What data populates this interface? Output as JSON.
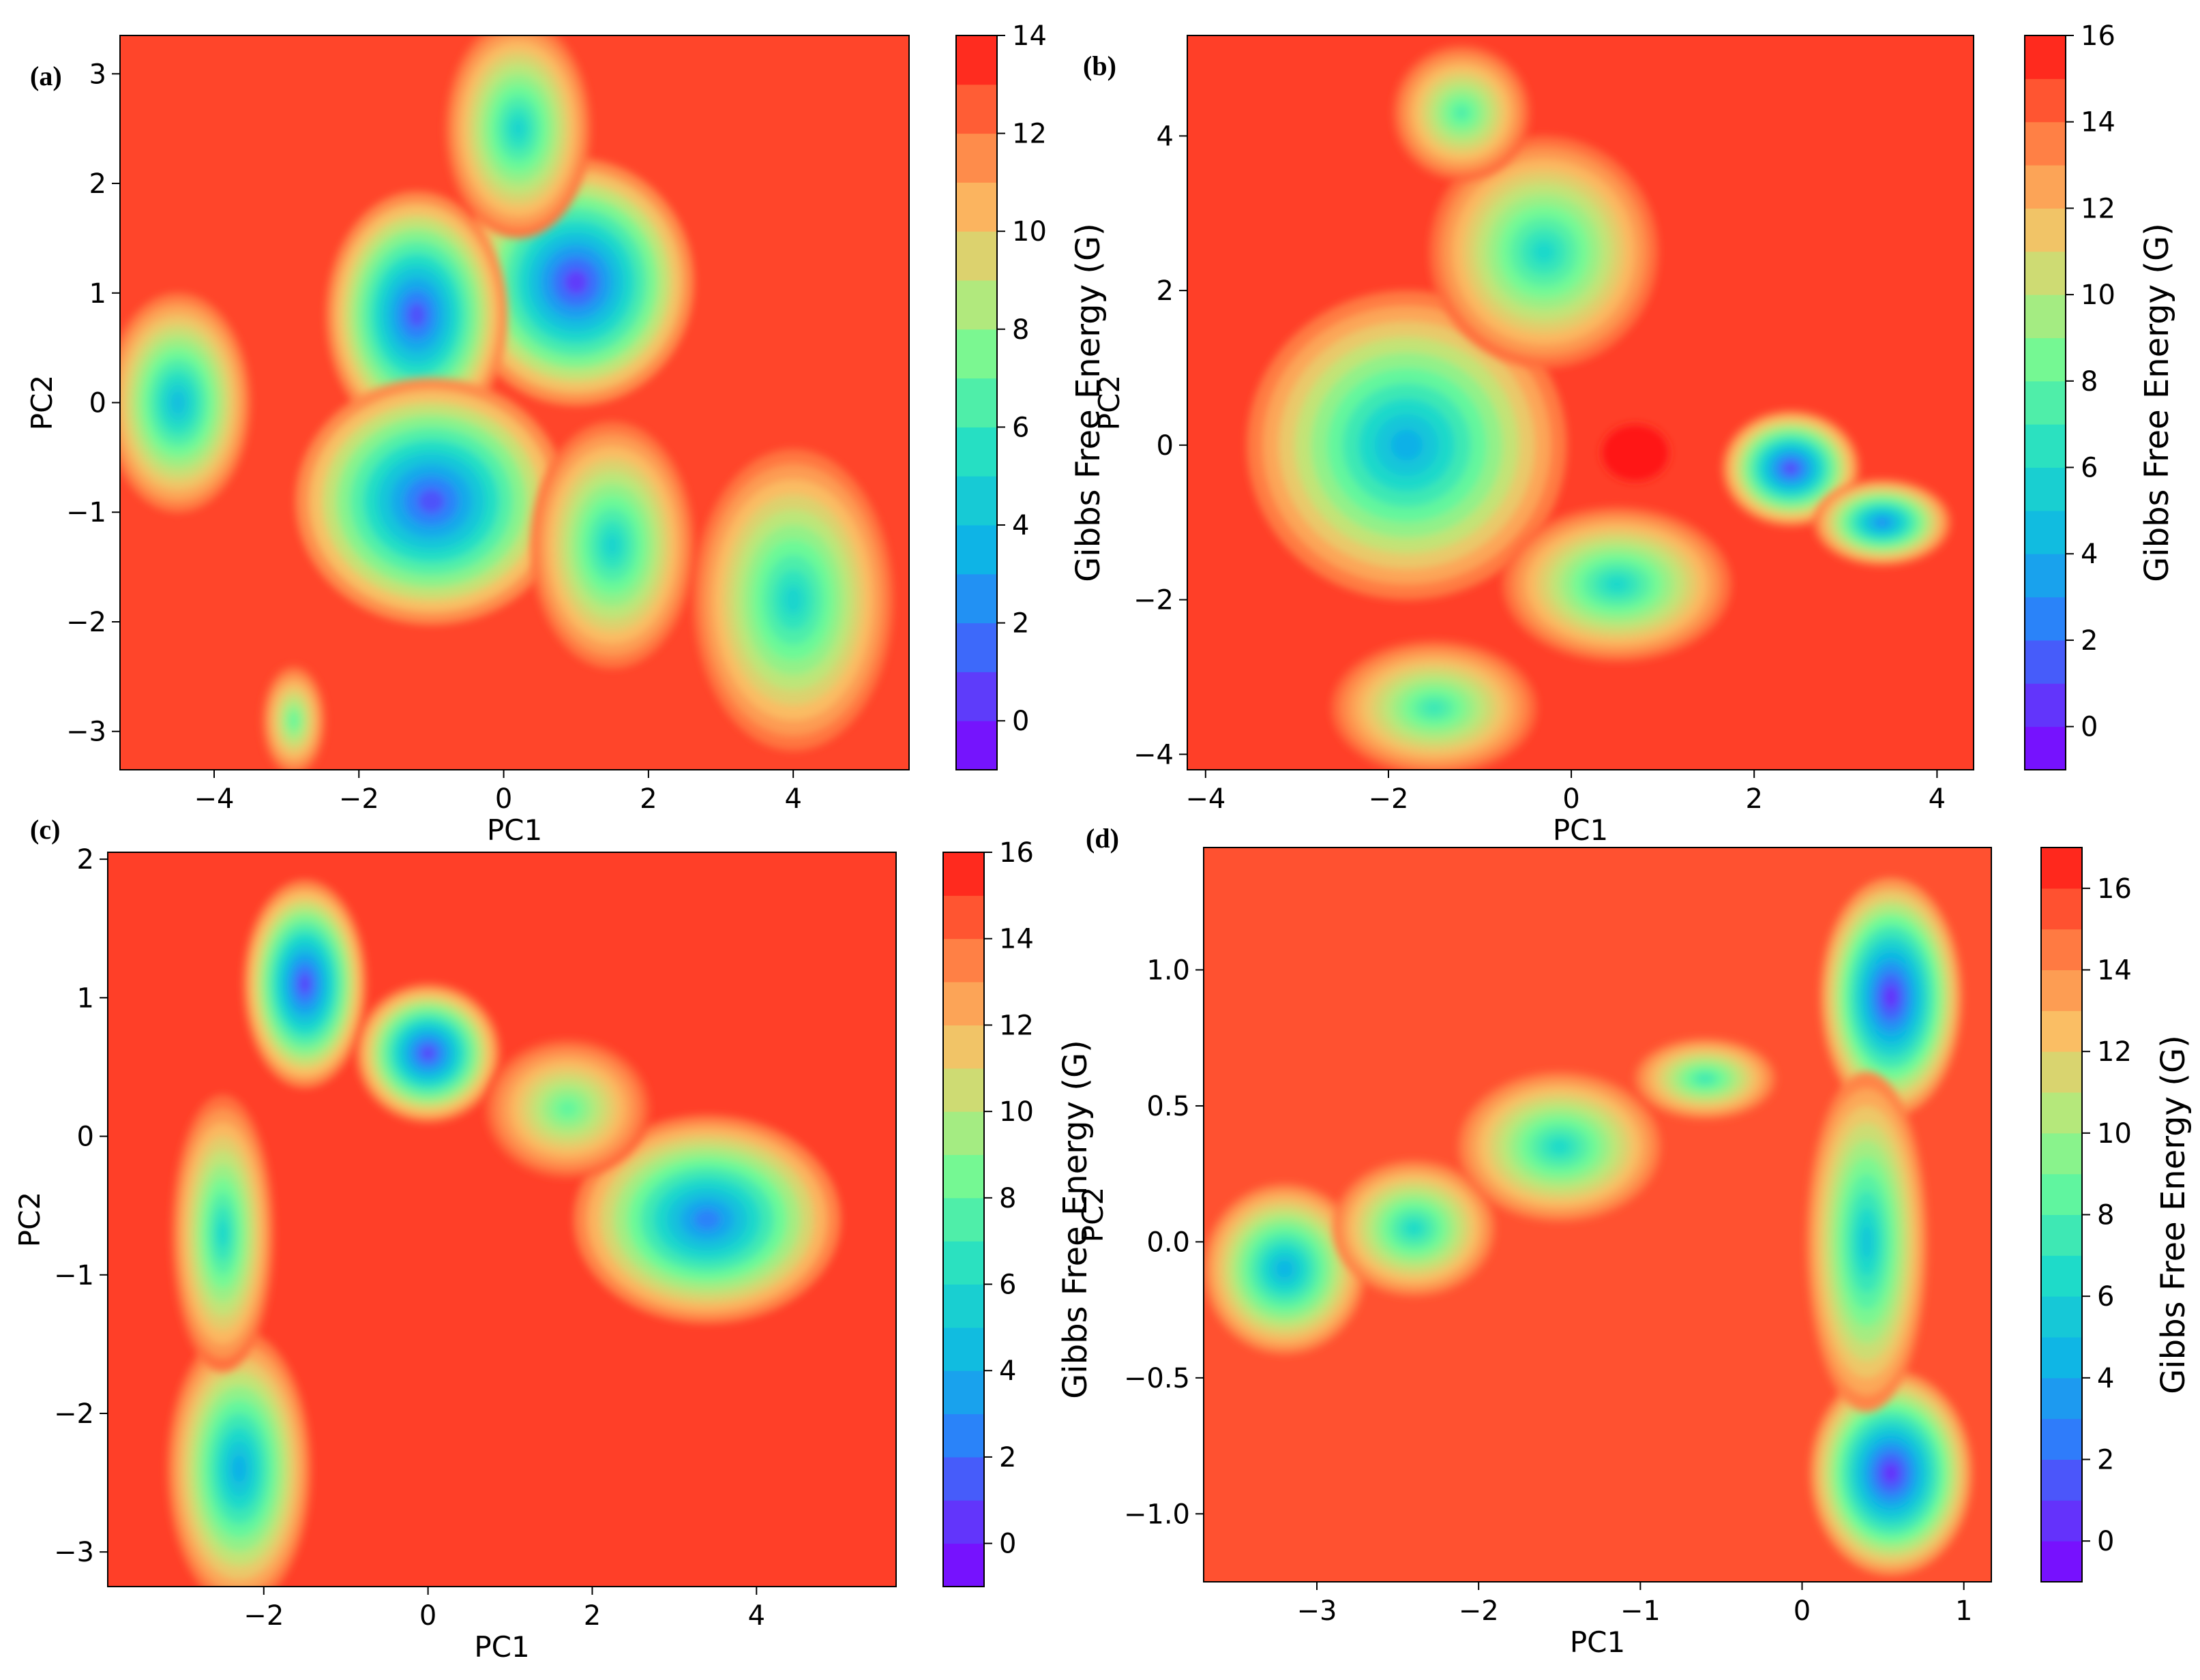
{
  "chart_data": [
    {
      "type": "heatmap",
      "panel_label": "(a)",
      "xlabel": "PC1",
      "ylabel": "PC2",
      "xlim": [
        -5.3,
        5.6
      ],
      "ylim": [
        -3.35,
        3.35
      ],
      "xticks": [
        -4,
        -2,
        0,
        2,
        4
      ],
      "yticks": [
        -3,
        -2,
        -1,
        0,
        1,
        2,
        3
      ],
      "xtick_labels": [
        "−4",
        "−2",
        "0",
        "2",
        "4"
      ],
      "ytick_labels": [
        "−3",
        "−2",
        "−1",
        "0",
        "1",
        "2",
        "3"
      ],
      "colorbar": {
        "label": "Gibbs Free Energy (G)",
        "min": -1,
        "max": 14,
        "ticks": [
          0,
          2,
          4,
          6,
          8,
          10,
          12,
          14
        ],
        "tick_labels": [
          "0",
          "2",
          "4",
          "6",
          "8",
          "10",
          "12",
          "14"
        ]
      },
      "background_value": 13,
      "basins": [
        {
          "x": 1.0,
          "y": 1.1,
          "sx": 1.3,
          "sy": 0.9,
          "depth": 12.5
        },
        {
          "x": -1.2,
          "y": 0.8,
          "sx": 1.0,
          "sy": 0.9,
          "depth": 12.0
        },
        {
          "x": -1.0,
          "y": -0.9,
          "sx": 1.5,
          "sy": 0.9,
          "depth": 12.0
        },
        {
          "x": 0.2,
          "y": 2.5,
          "sx": 0.8,
          "sy": 0.8,
          "depth": 8.0
        },
        {
          "x": -4.5,
          "y": 0.0,
          "sx": 0.8,
          "sy": 0.8,
          "depth": 9.0
        },
        {
          "x": 1.5,
          "y": -1.3,
          "sx": 0.9,
          "sy": 0.9,
          "depth": 8.0
        },
        {
          "x": 4.0,
          "y": -1.8,
          "sx": 1.1,
          "sy": 1.1,
          "depth": 8.0
        },
        {
          "x": -2.9,
          "y": -2.9,
          "sx": 0.35,
          "sy": 0.4,
          "depth": 6.0
        }
      ]
    },
    {
      "type": "heatmap",
      "panel_label": "(b)",
      "xlabel": "PC1",
      "ylabel": "PC2",
      "xlim": [
        -4.2,
        4.4
      ],
      "ylim": [
        -4.2,
        5.3
      ],
      "xticks": [
        -4,
        -2,
        0,
        2,
        4
      ],
      "yticks": [
        -4,
        -2,
        0,
        2,
        4
      ],
      "xtick_labels": [
        "−4",
        "−2",
        "0",
        "2",
        "4"
      ],
      "ytick_labels": [
        "−4",
        "−2",
        "0",
        "2",
        "4"
      ],
      "colorbar": {
        "label": "Gibbs Free Energy (G)",
        "min": -1,
        "max": 16,
        "ticks": [
          0,
          2,
          4,
          6,
          8,
          10,
          12,
          14,
          16
        ],
        "tick_labels": [
          "0",
          "2",
          "4",
          "6",
          "8",
          "10",
          "12",
          "14",
          "16"
        ]
      },
      "background_value": 15,
      "basins": [
        {
          "x": -1.8,
          "y": 0.0,
          "sx": 1.4,
          "sy": 1.6,
          "depth": 11.0
        },
        {
          "x": -0.3,
          "y": 2.5,
          "sx": 1.0,
          "sy": 1.2,
          "depth": 9.0
        },
        {
          "x": 0.5,
          "y": -1.8,
          "sx": 1.0,
          "sy": 0.8,
          "depth": 9.0
        },
        {
          "x": 2.4,
          "y": -0.3,
          "sx": 0.6,
          "sy": 0.6,
          "depth": 14.0
        },
        {
          "x": 3.4,
          "y": -1.0,
          "sx": 0.6,
          "sy": 0.45,
          "depth": 12.0
        },
        {
          "x": -1.2,
          "y": 4.3,
          "sx": 0.6,
          "sy": 0.7,
          "depth": 7.5
        },
        {
          "x": -1.5,
          "y": -3.4,
          "sx": 0.9,
          "sy": 0.7,
          "depth": 8.0
        },
        {
          "x": 0.7,
          "y": -0.1,
          "sx": 0.3,
          "sy": 0.3,
          "depth": -5.0
        }
      ]
    },
    {
      "type": "heatmap",
      "panel_label": "(c)",
      "xlabel": "PC1",
      "ylabel": "PC2",
      "xlim": [
        -3.9,
        5.7
      ],
      "ylim": [
        -3.25,
        2.05
      ],
      "xticks": [
        -2,
        0,
        2,
        4
      ],
      "yticks": [
        -3,
        -2,
        -1,
        0,
        1,
        2
      ],
      "xtick_labels": [
        "−2",
        "0",
        "2",
        "4"
      ],
      "ytick_labels": [
        "−3",
        "−2",
        "−1",
        "0",
        "1",
        "2"
      ],
      "colorbar": {
        "label": "Gibbs Free Energy (G)",
        "min": -1,
        "max": 16,
        "ticks": [
          0,
          2,
          4,
          6,
          8,
          10,
          12,
          14,
          16
        ],
        "tick_labels": [
          "0",
          "2",
          "4",
          "6",
          "8",
          "10",
          "12",
          "14",
          "16"
        ]
      },
      "background_value": 15,
      "basins": [
        {
          "x": -1.5,
          "y": 1.1,
          "sx": 0.6,
          "sy": 0.6,
          "depth": 14.0
        },
        {
          "x": 0.0,
          "y": 0.6,
          "sx": 0.7,
          "sy": 0.4,
          "depth": 14.0
        },
        {
          "x": 3.4,
          "y": -0.6,
          "sx": 1.3,
          "sy": 0.6,
          "depth": 12.5
        },
        {
          "x": -2.3,
          "y": -2.4,
          "sx": 0.7,
          "sy": 0.8,
          "depth": 11.0
        },
        {
          "x": -2.5,
          "y": -0.7,
          "sx": 0.5,
          "sy": 0.8,
          "depth": 9.0
        },
        {
          "x": 1.7,
          "y": 0.2,
          "sx": 0.8,
          "sy": 0.4,
          "depth": 7.0
        }
      ]
    },
    {
      "type": "heatmap",
      "panel_label": "(d)",
      "xlabel": "PC1",
      "ylabel": "PC2",
      "xlim": [
        -3.7,
        1.17
      ],
      "ylim": [
        -1.25,
        1.45
      ],
      "xticks": [
        -3,
        -2,
        -1,
        0,
        1
      ],
      "yticks": [
        -1.0,
        -0.5,
        0.0,
        0.5,
        1.0
      ],
      "xtick_labels": [
        "−3",
        "−2",
        "−1",
        "0",
        "1"
      ],
      "ytick_labels": [
        "−1.0",
        "−0.5",
        "0.0",
        "0.5",
        "1.0"
      ],
      "colorbar": {
        "label": "Gibbs Free Energy (G)",
        "min": -1,
        "max": 17,
        "ticks": [
          0,
          2,
          4,
          6,
          8,
          10,
          12,
          14,
          16
        ],
        "tick_labels": [
          "0",
          "2",
          "4",
          "6",
          "8",
          "10",
          "12",
          "14",
          "16"
        ]
      },
      "background_value": 15.5,
      "basins": [
        {
          "x": 0.55,
          "y": 0.9,
          "sx": 0.35,
          "sy": 0.35,
          "depth": 15.0
        },
        {
          "x": 0.55,
          "y": -0.85,
          "sx": 0.4,
          "sy": 0.3,
          "depth": 15.0
        },
        {
          "x": 0.4,
          "y": 0.0,
          "sx": 0.3,
          "sy": 0.5,
          "depth": 10.0
        },
        {
          "x": -3.2,
          "y": -0.1,
          "sx": 0.4,
          "sy": 0.25,
          "depth": 11.0
        },
        {
          "x": -2.4,
          "y": 0.05,
          "sx": 0.4,
          "sy": 0.2,
          "depth": 9.0
        },
        {
          "x": -1.5,
          "y": 0.35,
          "sx": 0.5,
          "sy": 0.22,
          "depth": 9.0
        },
        {
          "x": -0.6,
          "y": 0.6,
          "sx": 0.35,
          "sy": 0.12,
          "depth": 8.0
        }
      ]
    }
  ]
}
